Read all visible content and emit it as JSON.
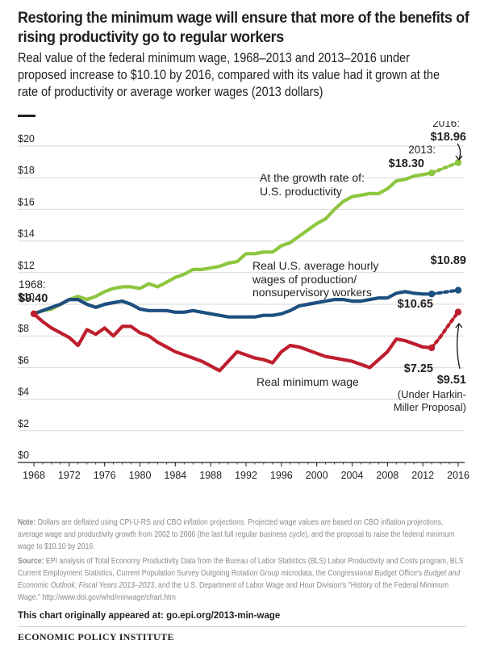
{
  "header": {
    "title": "Restoring the minimum wage will ensure that more of the benefits of rising productivity go to regular workers",
    "subtitle": "Real value of the federal minimum wage, 1968–2013 and 2013–2016 under proposed increase to $10.10 by 2016, compared with its value had it grown at the rate of productivity or average worker wages (2013 dollars)"
  },
  "colors": {
    "productivity": "#8dc63f",
    "avg_wage": "#1d4f80",
    "min_wage": "#be1e2d",
    "text": "#231f20",
    "grid": "#d9d9d9",
    "note_text": "#8a8a8a"
  },
  "chart_data": {
    "type": "line",
    "xlim": [
      1968,
      2016
    ],
    "ylim": [
      0,
      20
    ],
    "x_ticks": [
      "1968",
      "1972",
      "1976",
      "1980",
      "1984",
      "1988",
      "1992",
      "1996",
      "2000",
      "2004",
      "2008",
      "2012",
      "2016"
    ],
    "y_ticks": [
      "$0",
      "$2",
      "$4",
      "$6",
      "$8",
      "$10",
      "$12",
      "$14",
      "$16",
      "$18",
      "$20"
    ],
    "grid": "horizontal",
    "series": [
      {
        "name": "At the growth rate of: U.S. productivity",
        "key": "productivity",
        "x": [
          1968,
          1969,
          1970,
          1971,
          1972,
          1973,
          1974,
          1975,
          1976,
          1977,
          1978,
          1979,
          1980,
          1981,
          1982,
          1983,
          1984,
          1985,
          1986,
          1987,
          1988,
          1989,
          1990,
          1991,
          1992,
          1993,
          1994,
          1995,
          1996,
          1997,
          1998,
          1999,
          2000,
          2001,
          2002,
          2003,
          2004,
          2005,
          2006,
          2007,
          2008,
          2009,
          2010,
          2011,
          2012,
          2013
        ],
        "values": [
          9.4,
          9.6,
          9.7,
          10.0,
          10.3,
          10.5,
          10.3,
          10.5,
          10.8,
          11.0,
          11.1,
          11.1,
          11.0,
          11.3,
          11.1,
          11.4,
          11.7,
          11.9,
          12.2,
          12.2,
          12.3,
          12.4,
          12.6,
          12.7,
          13.2,
          13.2,
          13.3,
          13.3,
          13.7,
          13.9,
          14.3,
          14.7,
          15.1,
          15.4,
          16.0,
          16.5,
          16.8,
          16.9,
          17.0,
          17.0,
          17.3,
          17.8,
          17.9,
          18.1,
          18.2,
          18.3
        ],
        "projected_x": [
          2013,
          2014,
          2015,
          2016
        ],
        "projected_values": [
          18.3,
          18.52,
          18.74,
          18.96
        ]
      },
      {
        "name": "Real U.S. average hourly wages of production/nonsupervisory workers",
        "key": "avg_wage",
        "x": [
          1968,
          1969,
          1970,
          1971,
          1972,
          1973,
          1974,
          1975,
          1976,
          1977,
          1978,
          1979,
          1980,
          1981,
          1982,
          1983,
          1984,
          1985,
          1986,
          1987,
          1988,
          1989,
          1990,
          1991,
          1992,
          1993,
          1994,
          1995,
          1996,
          1997,
          1998,
          1999,
          2000,
          2001,
          2002,
          2003,
          2004,
          2005,
          2006,
          2007,
          2008,
          2009,
          2010,
          2011,
          2012,
          2013
        ],
        "values": [
          9.4,
          9.6,
          9.8,
          10.0,
          10.3,
          10.3,
          10.0,
          9.8,
          10.0,
          10.1,
          10.2,
          10.0,
          9.7,
          9.6,
          9.6,
          9.6,
          9.5,
          9.5,
          9.6,
          9.5,
          9.4,
          9.3,
          9.2,
          9.2,
          9.2,
          9.2,
          9.3,
          9.3,
          9.4,
          9.6,
          9.9,
          10.0,
          10.1,
          10.2,
          10.3,
          10.3,
          10.2,
          10.2,
          10.3,
          10.4,
          10.4,
          10.7,
          10.8,
          10.7,
          10.65,
          10.65
        ],
        "projected_x": [
          2013,
          2014,
          2015,
          2016
        ],
        "projected_values": [
          10.65,
          10.73,
          10.81,
          10.89
        ]
      },
      {
        "name": "Real minimum wage",
        "key": "min_wage",
        "x": [
          1968,
          1969,
          1970,
          1971,
          1972,
          1973,
          1974,
          1975,
          1976,
          1977,
          1978,
          1979,
          1980,
          1981,
          1982,
          1983,
          1984,
          1985,
          1986,
          1987,
          1988,
          1989,
          1990,
          1991,
          1992,
          1993,
          1994,
          1995,
          1996,
          1997,
          1998,
          1999,
          2000,
          2001,
          2002,
          2003,
          2004,
          2005,
          2006,
          2007,
          2008,
          2009,
          2010,
          2011,
          2012,
          2013
        ],
        "values": [
          9.4,
          8.9,
          8.5,
          8.2,
          7.9,
          7.4,
          8.4,
          8.1,
          8.5,
          8.0,
          8.6,
          8.6,
          8.2,
          8.0,
          7.6,
          7.3,
          7.0,
          6.8,
          6.6,
          6.4,
          6.1,
          5.8,
          6.4,
          7.0,
          6.8,
          6.6,
          6.5,
          6.3,
          7.0,
          7.4,
          7.3,
          7.1,
          6.9,
          6.7,
          6.6,
          6.5,
          6.4,
          6.2,
          6.0,
          6.5,
          7.0,
          7.8,
          7.7,
          7.5,
          7.3,
          7.25
        ],
        "projected_x": [
          2013,
          2014,
          2015,
          2016
        ],
        "projected_values": [
          7.25,
          7.95,
          8.75,
          9.51
        ]
      }
    ],
    "annotations": {
      "start_year": "1968:",
      "start_value": "$9.40",
      "prod_2013_year": "2013:",
      "prod_2013_value": "$18.30",
      "prod_2016_year": "2016:",
      "prod_2016_value": "$18.96",
      "prod_label_line1": "At the growth rate of:",
      "prod_label_line2": "U.S. productivity",
      "wage_label_line1": "Real U.S. average hourly",
      "wage_label_line2": "wages of production/",
      "wage_label_line3": "nonsupervisory workers",
      "wage_2013_value": "$10.65",
      "wage_2016_value": "$10.89",
      "min_label": "Real minimum wage",
      "min_2013_value": "$7.25",
      "min_2016_value": "$9.51",
      "min_2016_note1": "(Under Harkin-",
      "min_2016_note2": "Miller Proposal)"
    }
  },
  "notes": {
    "note_label": "Note:",
    "note_text": "Dollars are deflated using CPI-U-RS and CBO inflation projections. Projected wage values are based on CBO inflation projections, average wage and productivity growth from 2002 to 2006 (the last full regular business cycle), and the proposal to raise the federal minimum wage to $10.10 by 2016.",
    "source_label": "Source:",
    "source_text_1": "EPI analysis of Total Economy Productivity Data from the Bureau of Labor Statistics (BLS) Labor Productivity and Costs program, BLS Current Employment Statistics, Current Population Survey Outgoing Rotation Group microdata, the Congressional Budget Office's ",
    "source_italic": "Budget and Economic Outlook: Fiscal Years 2013–2023",
    "source_text_2": ", and the U.S. Department of Labor Wage and Hour Division's \"History of the Federal Minimum Wage,\" http://www.dol.gov/whd/minwage/chart.htm",
    "appeared_label": "This chart originally appeared at:",
    "appeared_url": "go.epi.org/2013-min-wage",
    "org": "ECONOMIC POLICY INSTITUTE"
  }
}
